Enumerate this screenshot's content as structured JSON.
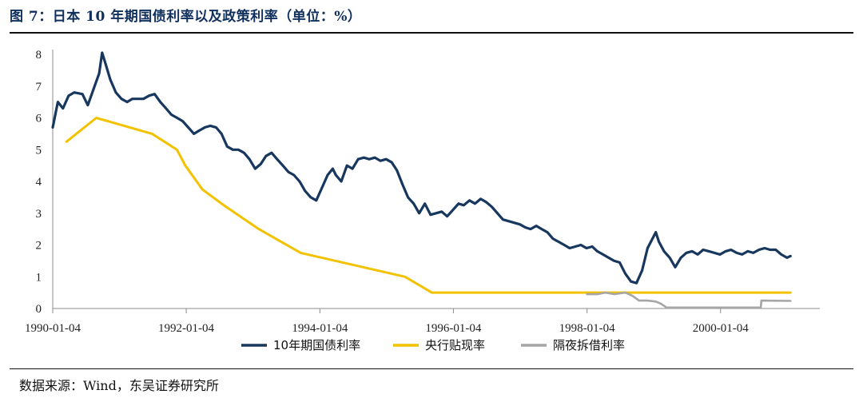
{
  "figure": {
    "title": "图 7：日本 10 年期国债利率以及政策利率（单位：%）",
    "source": "数据来源：Wind，东吴证券研究所"
  },
  "colors": {
    "jgb10y": "#17375e",
    "discount_rate": "#f2c200",
    "overnight_call": "#a6a6a6",
    "title": "#0f2f5c"
  },
  "chart_data": {
    "type": "line",
    "title": "",
    "xlabel": "",
    "ylabel": "",
    "ylim": [
      0,
      8
    ],
    "yticks": [
      0,
      1,
      2,
      3,
      4,
      5,
      6,
      7,
      8
    ],
    "xlim": [
      "1990-01-04",
      "2001-06-30"
    ],
    "xticks": [
      "1990-01-04",
      "1992-01-04",
      "1994-01-04",
      "1996-01-04",
      "1998-01-04",
      "2000-01-04"
    ],
    "legend_position": "bottom",
    "grid": false,
    "series": [
      {
        "name": "10年期国债利率",
        "points": [
          [
            "1990-01-04",
            5.7
          ],
          [
            "1990-02-01",
            6.5
          ],
          [
            "1990-03-01",
            6.3
          ],
          [
            "1990-04-01",
            6.7
          ],
          [
            "1990-05-01",
            6.8
          ],
          [
            "1990-06-15",
            6.75
          ],
          [
            "1990-07-15",
            6.4
          ],
          [
            "1990-08-15",
            6.9
          ],
          [
            "1990-09-15",
            7.4
          ],
          [
            "1990-10-01",
            8.05
          ],
          [
            "1990-10-20",
            7.7
          ],
          [
            "1990-11-15",
            7.2
          ],
          [
            "1990-12-15",
            6.8
          ],
          [
            "1991-01-15",
            6.6
          ],
          [
            "1991-02-15",
            6.5
          ],
          [
            "1991-03-15",
            6.6
          ],
          [
            "1991-04-15",
            6.6
          ],
          [
            "1991-05-15",
            6.6
          ],
          [
            "1991-06-15",
            6.7
          ],
          [
            "1991-07-15",
            6.75
          ],
          [
            "1991-08-15",
            6.5
          ],
          [
            "1991-09-15",
            6.3
          ],
          [
            "1991-10-15",
            6.1
          ],
          [
            "1991-11-15",
            6.0
          ],
          [
            "1991-12-15",
            5.9
          ],
          [
            "1992-01-15",
            5.7
          ],
          [
            "1992-02-15",
            5.5
          ],
          [
            "1992-03-15",
            5.6
          ],
          [
            "1992-04-15",
            5.7
          ],
          [
            "1992-05-15",
            5.75
          ],
          [
            "1992-06-15",
            5.7
          ],
          [
            "1992-07-15",
            5.5
          ],
          [
            "1992-08-15",
            5.1
          ],
          [
            "1992-09-15",
            5.0
          ],
          [
            "1992-10-15",
            5.0
          ],
          [
            "1992-11-15",
            4.9
          ],
          [
            "1992-12-15",
            4.7
          ],
          [
            "1993-01-15",
            4.4
          ],
          [
            "1993-02-15",
            4.55
          ],
          [
            "1993-03-15",
            4.8
          ],
          [
            "1993-04-15",
            4.9
          ],
          [
            "1993-05-15",
            4.7
          ],
          [
            "1993-06-15",
            4.5
          ],
          [
            "1993-07-15",
            4.3
          ],
          [
            "1993-08-15",
            4.2
          ],
          [
            "1993-09-15",
            4.0
          ],
          [
            "1993-10-15",
            3.7
          ],
          [
            "1993-11-15",
            3.5
          ],
          [
            "1993-12-15",
            3.4
          ],
          [
            "1994-01-15",
            3.8
          ],
          [
            "1994-02-15",
            4.2
          ],
          [
            "1994-03-15",
            4.4
          ],
          [
            "1994-04-01",
            4.2
          ],
          [
            "1994-05-01",
            4.0
          ],
          [
            "1994-06-01",
            4.5
          ],
          [
            "1994-07-01",
            4.4
          ],
          [
            "1994-08-01",
            4.7
          ],
          [
            "1994-09-01",
            4.75
          ],
          [
            "1994-10-01",
            4.7
          ],
          [
            "1994-11-01",
            4.75
          ],
          [
            "1994-12-01",
            4.65
          ],
          [
            "1995-01-01",
            4.7
          ],
          [
            "1995-02-01",
            4.6
          ],
          [
            "1995-03-01",
            4.35
          ],
          [
            "1995-04-01",
            3.9
          ],
          [
            "1995-05-01",
            3.5
          ],
          [
            "1995-06-01",
            3.3
          ],
          [
            "1995-07-01",
            3.0
          ],
          [
            "1995-08-01",
            3.3
          ],
          [
            "1995-09-01",
            2.95
          ],
          [
            "1995-10-01",
            3.0
          ],
          [
            "1995-11-01",
            3.05
          ],
          [
            "1995-12-01",
            2.9
          ],
          [
            "1996-01-01",
            3.1
          ],
          [
            "1996-02-01",
            3.3
          ],
          [
            "1996-03-01",
            3.25
          ],
          [
            "1996-04-01",
            3.4
          ],
          [
            "1996-05-01",
            3.3
          ],
          [
            "1996-06-01",
            3.45
          ],
          [
            "1996-07-01",
            3.35
          ],
          [
            "1996-08-01",
            3.2
          ],
          [
            "1996-09-01",
            3.0
          ],
          [
            "1996-10-01",
            2.8
          ],
          [
            "1996-11-01",
            2.75
          ],
          [
            "1996-12-01",
            2.7
          ],
          [
            "1997-01-01",
            2.65
          ],
          [
            "1997-02-01",
            2.55
          ],
          [
            "1997-03-01",
            2.5
          ],
          [
            "1997-04-01",
            2.6
          ],
          [
            "1997-05-01",
            2.5
          ],
          [
            "1997-06-01",
            2.4
          ],
          [
            "1997-07-01",
            2.2
          ],
          [
            "1997-08-01",
            2.1
          ],
          [
            "1997-09-01",
            2.0
          ],
          [
            "1997-10-01",
            1.9
          ],
          [
            "1997-11-01",
            1.95
          ],
          [
            "1997-12-01",
            2.0
          ],
          [
            "1998-01-01",
            1.9
          ],
          [
            "1998-02-01",
            1.95
          ],
          [
            "1998-03-01",
            1.8
          ],
          [
            "1998-04-01",
            1.7
          ],
          [
            "1998-05-01",
            1.6
          ],
          [
            "1998-06-01",
            1.5
          ],
          [
            "1998-07-01",
            1.45
          ],
          [
            "1998-08-01",
            1.1
          ],
          [
            "1998-09-01",
            0.85
          ],
          [
            "1998-10-01",
            0.8
          ],
          [
            "1998-11-01",
            1.2
          ],
          [
            "1998-12-01",
            1.9
          ],
          [
            "1999-01-15",
            2.4
          ],
          [
            "1999-02-01",
            2.1
          ],
          [
            "1999-03-01",
            1.8
          ],
          [
            "1999-04-01",
            1.6
          ],
          [
            "1999-05-01",
            1.3
          ],
          [
            "1999-06-01",
            1.6
          ],
          [
            "1999-07-01",
            1.75
          ],
          [
            "1999-08-01",
            1.8
          ],
          [
            "1999-09-01",
            1.7
          ],
          [
            "1999-10-01",
            1.85
          ],
          [
            "1999-11-01",
            1.8
          ],
          [
            "1999-12-01",
            1.75
          ],
          [
            "2000-01-01",
            1.7
          ],
          [
            "2000-02-01",
            1.8
          ],
          [
            "2000-03-01",
            1.85
          ],
          [
            "2000-04-01",
            1.75
          ],
          [
            "2000-05-01",
            1.7
          ],
          [
            "2000-06-01",
            1.8
          ],
          [
            "2000-07-01",
            1.75
          ],
          [
            "2000-08-01",
            1.85
          ],
          [
            "2000-09-01",
            1.9
          ],
          [
            "2000-10-01",
            1.85
          ],
          [
            "2000-11-01",
            1.85
          ],
          [
            "2000-12-01",
            1.7
          ],
          [
            "2001-01-01",
            1.6
          ],
          [
            "2001-01-20",
            1.65
          ]
        ]
      },
      {
        "name": "央行贴现率",
        "points": [
          [
            "1990-03-20",
            5.25
          ],
          [
            "1990-08-30",
            6.0
          ],
          [
            "1991-07-01",
            5.5
          ],
          [
            "1991-11-14",
            5.0
          ],
          [
            "1991-12-30",
            4.5
          ],
          [
            "1992-04-01",
            3.75
          ],
          [
            "1992-07-27",
            3.25
          ],
          [
            "1993-02-04",
            2.5
          ],
          [
            "1993-09-21",
            1.75
          ],
          [
            "1995-04-14",
            1.0
          ],
          [
            "1995-09-08",
            0.5
          ],
          [
            "2001-01-20",
            0.5
          ]
        ]
      },
      {
        "name": "隔夜拆借利率",
        "points": [
          [
            "1998-01-04",
            0.45
          ],
          [
            "1998-03-01",
            0.45
          ],
          [
            "1998-04-15",
            0.5
          ],
          [
            "1998-06-01",
            0.45
          ],
          [
            "1998-08-01",
            0.5
          ],
          [
            "1998-09-09",
            0.4
          ],
          [
            "1998-10-15",
            0.25
          ],
          [
            "1998-12-01",
            0.25
          ],
          [
            "1999-01-15",
            0.22
          ],
          [
            "1999-02-12",
            0.15
          ],
          [
            "1999-03-15",
            0.03
          ],
          [
            "1999-08-01",
            0.03
          ],
          [
            "2000-01-01",
            0.03
          ],
          [
            "2000-08-11",
            0.03
          ],
          [
            "2000-08-14",
            0.25
          ],
          [
            "2001-01-20",
            0.24
          ]
        ]
      }
    ]
  }
}
